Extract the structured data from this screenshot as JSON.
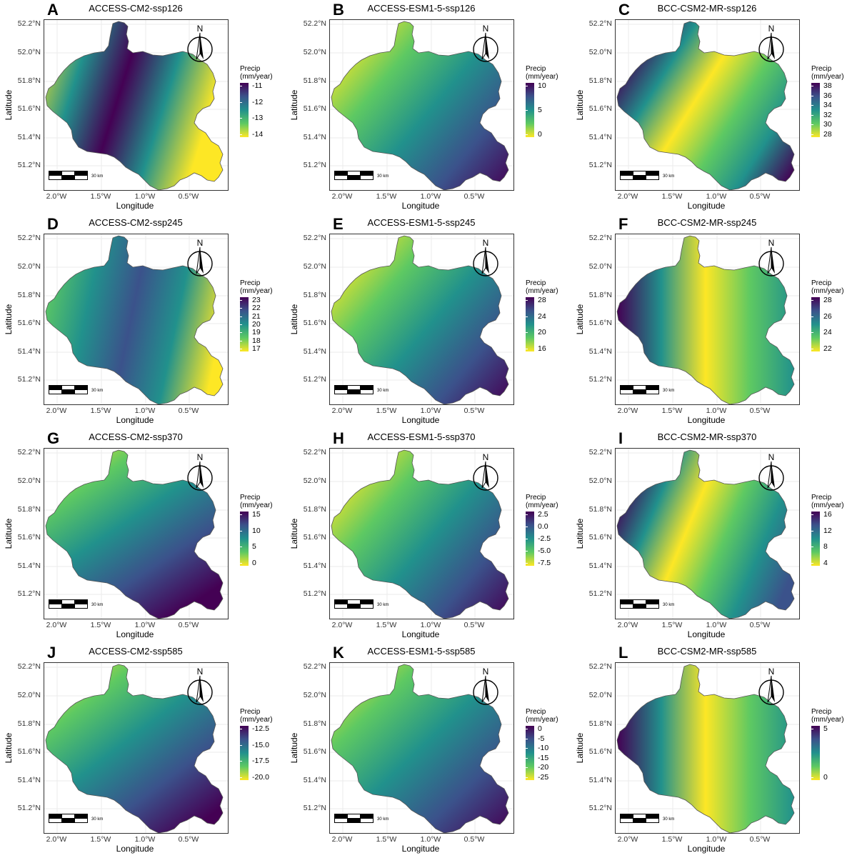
{
  "figure": {
    "common": {
      "xlabel": "Longitude",
      "ylabel": "Latitude",
      "legend_title_line1": "Precip",
      "legend_title_line2": "(mm/year)",
      "north_label": "N",
      "scale_label": "30 km",
      "lon_ticks": [
        "2.0°W",
        "1.5°W",
        "1.0°W",
        "0.5°W"
      ],
      "lat_ticks": [
        "52.2°N",
        "52.0°N",
        "51.8°N",
        "51.6°N",
        "51.4°N",
        "51.2°N"
      ]
    },
    "panels": [
      {
        "letter": "A",
        "title": "ACCESS-CM2-ssp126",
        "legend_labels": [
          "-11",
          "-12",
          "-13",
          "-14"
        ]
      },
      {
        "letter": "B",
        "title": "ACCESS-ESM1-5-ssp126",
        "legend_labels": [
          "10",
          "5",
          "0"
        ]
      },
      {
        "letter": "C",
        "title": "BCC-CSM2-MR-ssp126",
        "legend_labels": [
          "38",
          "36",
          "34",
          "32",
          "30",
          "28"
        ]
      },
      {
        "letter": "D",
        "title": "ACCESS-CM2-ssp245",
        "legend_labels": [
          "23",
          "22",
          "21",
          "20",
          "19",
          "18",
          "17"
        ]
      },
      {
        "letter": "E",
        "title": "ACCESS-ESM1-5-ssp245",
        "legend_labels": [
          "28",
          "24",
          "20",
          "16"
        ]
      },
      {
        "letter": "F",
        "title": "BCC-CSM2-MR-ssp245",
        "legend_labels": [
          "28",
          "26",
          "24",
          "22"
        ]
      },
      {
        "letter": "G",
        "title": "ACCESS-CM2-ssp370",
        "legend_labels": [
          "15",
          "10",
          "5",
          "0"
        ]
      },
      {
        "letter": "H",
        "title": "ACCESS-ESM1-5-ssp370",
        "legend_labels": [
          "2.5",
          "0.0",
          "-2.5",
          "-5.0",
          "-7.5"
        ]
      },
      {
        "letter": "I",
        "title": "BCC-CSM2-MR-ssp370",
        "legend_labels": [
          "16",
          "12",
          "8",
          "4"
        ]
      },
      {
        "letter": "J",
        "title": "ACCESS-CM2-ssp585",
        "legend_labels": [
          "-12.5",
          "-15.0",
          "-17.5",
          "-20.0"
        ]
      },
      {
        "letter": "K",
        "title": "ACCESS-ESM1-5-ssp585",
        "legend_labels": [
          "0",
          "-5",
          "-10",
          "-15",
          "-20",
          "-25"
        ]
      },
      {
        "letter": "L",
        "title": "BCC-CSM2-MR-ssp585",
        "legend_labels": [
          "5",
          "0"
        ]
      }
    ]
  },
  "colors": {
    "viridis": [
      "#440154",
      "#3b528b",
      "#21918c",
      "#5ec962",
      "#fde725"
    ],
    "panel_gradients": [
      [
        "#fde725",
        "#21918c",
        "#440154",
        "#21918c",
        "#fde725"
      ],
      [
        "#fde725",
        "#5ec962",
        "#21918c",
        "#3b528b",
        "#440154"
      ],
      [
        "#440154",
        "#21918c",
        "#fde725",
        "#5ec962",
        "#21918c",
        "#440154"
      ],
      [
        "#5ec962",
        "#21918c",
        "#3b528b",
        "#21918c",
        "#fde725"
      ],
      [
        "#fde725",
        "#5ec962",
        "#21918c",
        "#3b528b",
        "#440154"
      ],
      [
        "#440154",
        "#21918c",
        "#fde725",
        "#5ec962",
        "#21918c"
      ],
      [
        "#fde725",
        "#5ec962",
        "#21918c",
        "#3b528b",
        "#440154"
      ],
      [
        "#fde725",
        "#5ec962",
        "#21918c",
        "#3b528b",
        "#440154"
      ],
      [
        "#440154",
        "#21918c",
        "#fde725",
        "#5ec962",
        "#21918c",
        "#3b528b"
      ],
      [
        "#fde725",
        "#5ec962",
        "#21918c",
        "#3b528b",
        "#440154"
      ],
      [
        "#fde725",
        "#5ec962",
        "#21918c",
        "#3b528b",
        "#440154"
      ],
      [
        "#440154",
        "#21918c",
        "#fde725",
        "#5ec962",
        "#21918c"
      ]
    ]
  }
}
